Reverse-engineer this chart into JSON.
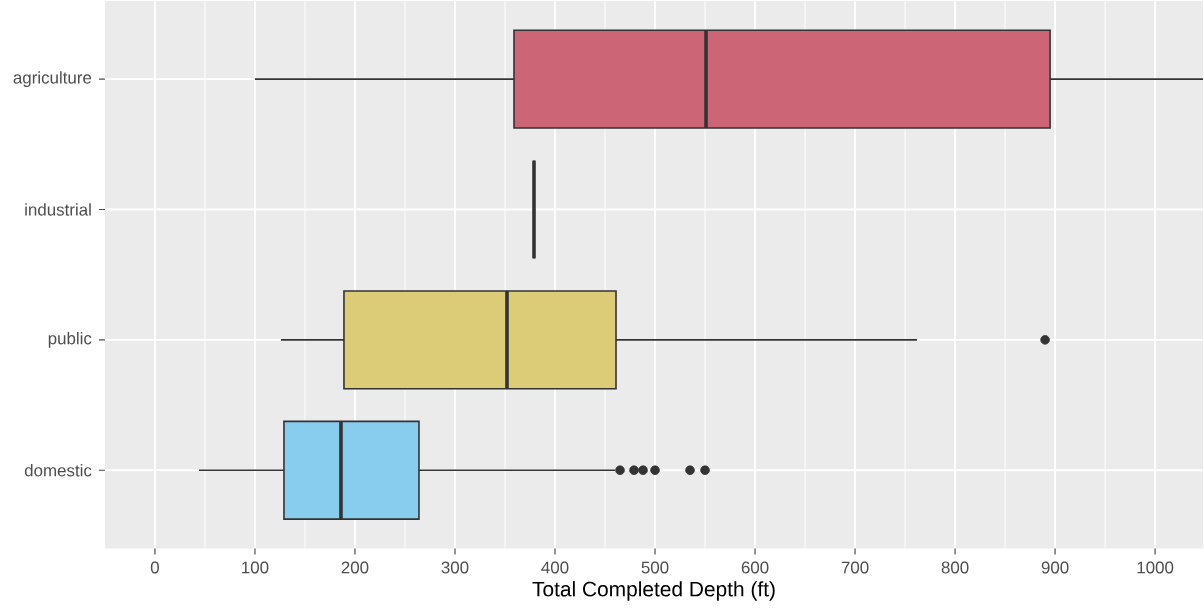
{
  "chart_data": {
    "type": "box",
    "orientation": "horizontal",
    "xlabel": "Total Completed Depth (ft)",
    "categories": [
      "agriculture",
      "industrial",
      "public",
      "domestic"
    ],
    "colors": [
      "#cc6677",
      null,
      "#ddcc77",
      "#88ccee"
    ],
    "boxes": [
      {
        "low": 100,
        "q1": 359,
        "median": 551,
        "q3": 895,
        "high": 1048
      },
      {
        "low": 379,
        "q1": 379,
        "median": 379,
        "q3": 379,
        "high": 379
      },
      {
        "low": 126,
        "q1": 189,
        "median": 352,
        "q3": 461,
        "high": 762,
        "outliers": [
          890
        ]
      },
      {
        "low": 44,
        "q1": 129,
        "median": 186,
        "q3": 264,
        "high": 460,
        "outliers": [
          465,
          479,
          488,
          500,
          535,
          550
        ]
      }
    ],
    "xlim": [
      -50,
      1048
    ],
    "xticks": [
      0,
      100,
      200,
      300,
      400,
      500,
      600,
      700,
      800,
      900,
      1000
    ],
    "grid": true
  }
}
